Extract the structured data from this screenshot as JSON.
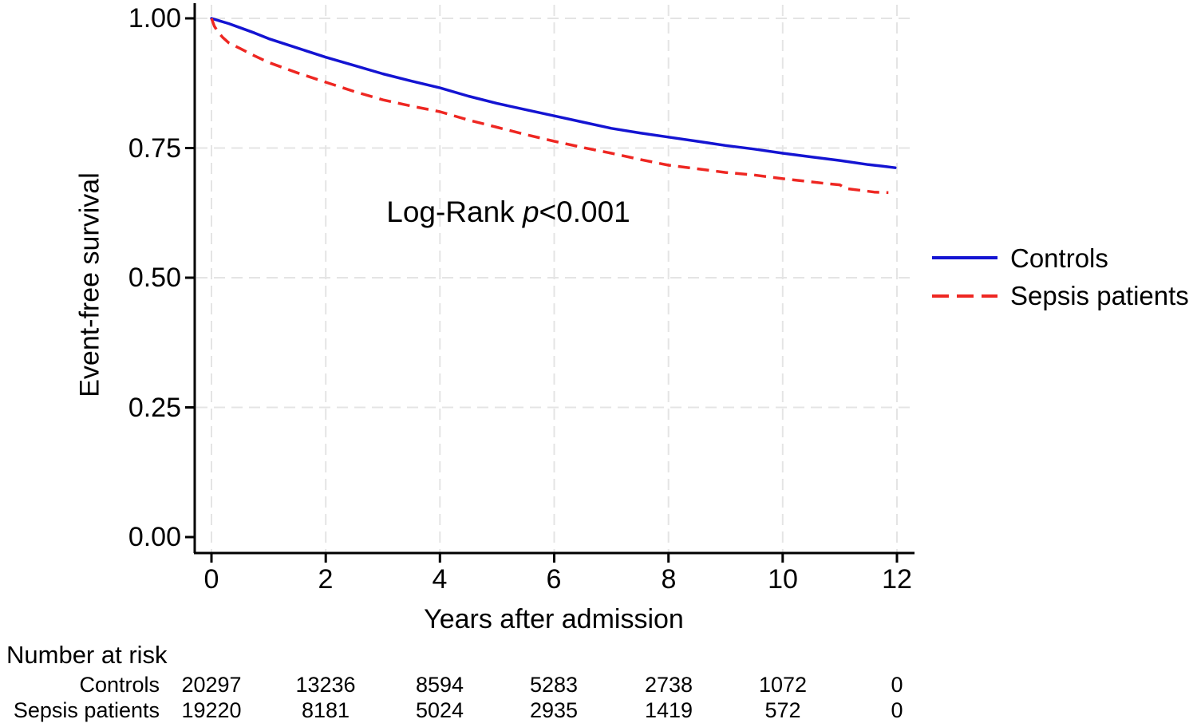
{
  "chart_data": {
    "type": "line",
    "subtype": "kaplan-meier-survival",
    "title": "",
    "xlabel": "Years after admission",
    "ylabel": "Event-free survival",
    "xlim": [
      0,
      12
    ],
    "ylim": [
      0.0,
      1.0
    ],
    "grid": true,
    "grid_style": "dashed-lightgray",
    "legend_position": "right",
    "background": "#ffffff",
    "axis_color": "#000000",
    "grid_color": "#e4e4e4",
    "x_axis": {
      "tick_labels": [
        "0",
        "2",
        "4",
        "6",
        "8",
        "10",
        "12"
      ],
      "tick_values": [
        0,
        2,
        4,
        6,
        8,
        10,
        12
      ]
    },
    "y_axis": {
      "tick_labels": [
        "1.00",
        "0.75",
        "0.50",
        "0.25",
        "0.00"
      ],
      "tick_values": [
        1.0,
        0.75,
        0.5,
        0.25,
        0.0
      ]
    },
    "annotation": {
      "text": "Log-Rank p<0.001",
      "prefix": "Log-Rank ",
      "italic": "p",
      "suffix": "<0.001"
    },
    "legend": {
      "items": [
        {
          "label": "Controls",
          "color": "#1414d2",
          "style": "solid"
        },
        {
          "label": "Sepsis patients",
          "color": "#ee2722",
          "style": "dashed"
        }
      ]
    },
    "series": [
      {
        "name": "Controls",
        "color": "#1414d2",
        "style": "solid",
        "points": [
          [
            0,
            1.0
          ],
          [
            0.15,
            0.995
          ],
          [
            0.3,
            0.99
          ],
          [
            0.5,
            0.982
          ],
          [
            0.75,
            0.972
          ],
          [
            1,
            0.961
          ],
          [
            1.5,
            0.943
          ],
          [
            2,
            0.925
          ],
          [
            2.5,
            0.909
          ],
          [
            3,
            0.893
          ],
          [
            3.5,
            0.879
          ],
          [
            4,
            0.866
          ],
          [
            4.5,
            0.85
          ],
          [
            5,
            0.836
          ],
          [
            5.5,
            0.824
          ],
          [
            6,
            0.812
          ],
          [
            6.5,
            0.8
          ],
          [
            7,
            0.788
          ],
          [
            7.5,
            0.779
          ],
          [
            8,
            0.771
          ],
          [
            8.5,
            0.763
          ],
          [
            9,
            0.755
          ],
          [
            9.5,
            0.748
          ],
          [
            10,
            0.74
          ],
          [
            10.5,
            0.733
          ],
          [
            11,
            0.726
          ],
          [
            11.5,
            0.718
          ],
          [
            11.75,
            0.715
          ],
          [
            11.97,
            0.712
          ]
        ]
      },
      {
        "name": "Sepsis patients",
        "color": "#ee2722",
        "style": "dashed",
        "points": [
          [
            0,
            1.0
          ],
          [
            0.05,
            0.985
          ],
          [
            0.12,
            0.973
          ],
          [
            0.2,
            0.963
          ],
          [
            0.3,
            0.953
          ],
          [
            0.5,
            0.942
          ],
          [
            0.75,
            0.928
          ],
          [
            1,
            0.915
          ],
          [
            1.5,
            0.895
          ],
          [
            2,
            0.877
          ],
          [
            2.5,
            0.859
          ],
          [
            3,
            0.843
          ],
          [
            3.5,
            0.831
          ],
          [
            4,
            0.82
          ],
          [
            4.5,
            0.804
          ],
          [
            5,
            0.79
          ],
          [
            5.5,
            0.776
          ],
          [
            6,
            0.763
          ],
          [
            6.5,
            0.751
          ],
          [
            7,
            0.74
          ],
          [
            7.5,
            0.728
          ],
          [
            8,
            0.717
          ],
          [
            8.5,
            0.71
          ],
          [
            9,
            0.703
          ],
          [
            9.5,
            0.698
          ],
          [
            10,
            0.691
          ],
          [
            10.4,
            0.686
          ],
          [
            10.8,
            0.681
          ],
          [
            11.0,
            0.679
          ],
          [
            11.1,
            0.672
          ],
          [
            11.4,
            0.668
          ],
          [
            11.6,
            0.665
          ],
          [
            11.85,
            0.664
          ]
        ]
      }
    ],
    "number_at_risk": {
      "title": "Number at risk",
      "time_points": [
        0,
        2,
        4,
        6,
        8,
        10,
        12
      ],
      "rows": [
        {
          "label": "Controls",
          "values": [
            "20297",
            "13236",
            "8594",
            "5283",
            "2738",
            "1072",
            "0"
          ]
        },
        {
          "label": "Sepsis patients",
          "values": [
            "19220",
            "8181",
            "5024",
            "2935",
            "1419",
            "572",
            "0"
          ]
        }
      ]
    }
  }
}
